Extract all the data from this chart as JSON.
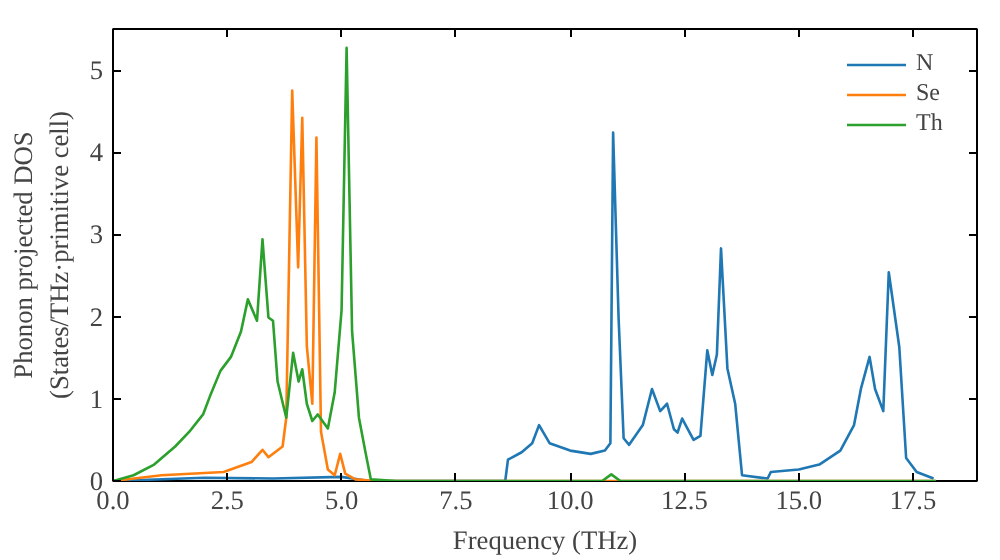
{
  "chart_data": {
    "type": "line",
    "xlabel": "Frequency (THz)",
    "ylabel": "Phonon projected DOS\n(States/THz·primitive cell)",
    "xlim": [
      0,
      18.9
    ],
    "ylim": [
      0,
      5.5
    ],
    "xticks": [
      {
        "value": 0,
        "label": "0.0"
      },
      {
        "value": 2.5,
        "label": "2.5"
      },
      {
        "value": 5,
        "label": "5.0"
      },
      {
        "value": 7.5,
        "label": "7.5"
      },
      {
        "value": 10,
        "label": "10.0"
      },
      {
        "value": 12.5,
        "label": "12.5"
      },
      {
        "value": 15,
        "label": "15.0"
      },
      {
        "value": 17.5,
        "label": "17.5"
      }
    ],
    "yticks": [
      0,
      1,
      2,
      3,
      4,
      5
    ],
    "grid": false,
    "legend": "top right",
    "marker": "none",
    "line_style": "solid",
    "series": [
      {
        "name": "N",
        "color": "#1f77b4",
        "x": [
          0,
          2.0,
          3.5,
          5.0,
          5.6,
          8.58,
          8.64,
          8.94,
          9.17,
          9.32,
          9.55,
          10.0,
          10.45,
          10.76,
          10.88,
          10.94,
          11.06,
          11.17,
          11.29,
          11.59,
          11.79,
          11.97,
          12.12,
          12.27,
          12.35,
          12.45,
          12.7,
          12.85,
          13.0,
          13.11,
          13.21,
          13.3,
          13.44,
          13.61,
          13.76,
          14.32,
          14.39,
          15.0,
          15.45,
          15.91,
          16.21,
          16.36,
          16.55,
          16.67,
          16.85,
          16.97,
          17.2,
          17.35,
          17.58,
          17.95
        ],
        "values": [
          0,
          0.04,
          0.03,
          0.05,
          0,
          0,
          0.26,
          0.35,
          0.46,
          0.68,
          0.46,
          0.37,
          0.33,
          0.37,
          0.46,
          4.24,
          1.98,
          0.52,
          0.44,
          0.68,
          1.12,
          0.85,
          0.94,
          0.63,
          0.59,
          0.76,
          0.5,
          0.55,
          1.59,
          1.29,
          1.54,
          2.83,
          1.37,
          0.94,
          0.07,
          0.03,
          0.11,
          0.14,
          0.2,
          0.37,
          0.68,
          1.12,
          1.51,
          1.12,
          0.85,
          2.54,
          1.63,
          0.28,
          0.11,
          0.03
        ]
      },
      {
        "name": "Se",
        "color": "#ff7f0e",
        "x": [
          0,
          1.06,
          2.42,
          3.03,
          3.27,
          3.4,
          3.71,
          3.79,
          3.92,
          4.05,
          4.14,
          4.24,
          4.36,
          4.45,
          4.55,
          4.7,
          4.85,
          4.97,
          5.08,
          5.3,
          5.76,
          18.0
        ],
        "values": [
          0,
          0.07,
          0.11,
          0.23,
          0.38,
          0.29,
          0.42,
          0.77,
          4.75,
          2.6,
          4.42,
          1.64,
          0.94,
          4.18,
          0.6,
          0.14,
          0.07,
          0.33,
          0.09,
          0.02,
          0,
          0
        ]
      },
      {
        "name": "Th",
        "color": "#2ca02c",
        "x": [
          0,
          0.45,
          0.9,
          1.36,
          1.67,
          1.97,
          2.12,
          2.35,
          2.58,
          2.8,
          2.95,
          3.15,
          3.27,
          3.4,
          3.5,
          3.6,
          3.79,
          3.94,
          4.06,
          4.14,
          4.24,
          4.36,
          4.48,
          4.7,
          4.85,
          5.0,
          5.11,
          5.23,
          5.38,
          5.53,
          5.64,
          6.2,
          10.7,
          10.9,
          11.1,
          18.0
        ],
        "values": [
          0,
          0.07,
          0.2,
          0.42,
          0.6,
          0.81,
          1.03,
          1.34,
          1.51,
          1.82,
          2.21,
          1.95,
          2.94,
          1.99,
          1.95,
          1.21,
          0.77,
          1.56,
          1.21,
          1.36,
          0.94,
          0.73,
          0.81,
          0.64,
          1.08,
          2.08,
          5.27,
          1.82,
          0.77,
          0.33,
          0.02,
          0,
          0,
          0.08,
          0,
          0
        ]
      }
    ]
  }
}
